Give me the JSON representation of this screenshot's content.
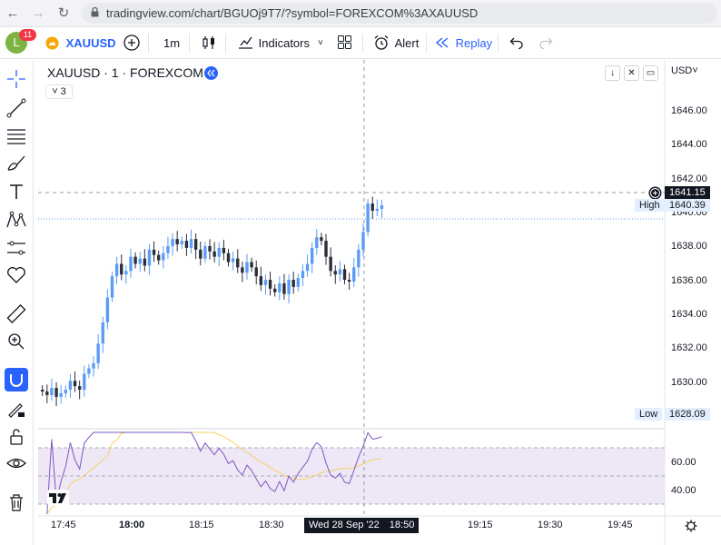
{
  "browser": {
    "url": "tradingview.com/chart/BGUOj9T7/?symbol=FOREXCOM%3AXAUUSD",
    "back_icon": "←",
    "forward_icon": "→",
    "reload_icon": "↻"
  },
  "toolbar": {
    "avatar_letter": "L",
    "notification_count": "11",
    "symbol": "XAUUSD",
    "interval": "1m",
    "indicators_label": "Indicators",
    "alert_label": "Alert",
    "replay_label": "Replay"
  },
  "chart": {
    "title": "XAUUSD · 1 · FOREXCOM",
    "collapse_label": "˅ 3",
    "currency": "USD˅",
    "crosshair_price": "1641.15",
    "high_label": "High",
    "high_value": "1640.39",
    "low_label": "Low",
    "low_value": "1628.09",
    "crosshair_time": "Wed 28 Sep '22",
    "crosshair_clock": "18:50",
    "price_ticks": [
      "1646.00",
      "1644.00",
      "1642.00",
      "1640.00",
      "1638.00",
      "1636.00",
      "1634.00",
      "1632.00",
      "1630.00"
    ],
    "rsi_ticks": [
      "60.00",
      "40.00"
    ],
    "time_ticks": [
      "17:45",
      "18:00",
      "18:15",
      "18:30",
      "19:15",
      "19:30",
      "19:45"
    ],
    "colors": {
      "up": "#5b9cf6",
      "down": "#2a2e39",
      "rsi_line": "#7e57c2",
      "rsi_ma": "#f5d264",
      "rsi_band": "#ede7f6"
    }
  },
  "chart_data": {
    "type": "candlestick",
    "symbol": "XAUUSD",
    "interval": "1m",
    "ylim": [
      1627.2,
      1648.0
    ],
    "candles": [],
    "rsi_ylim": [
      30,
      70
    ]
  }
}
